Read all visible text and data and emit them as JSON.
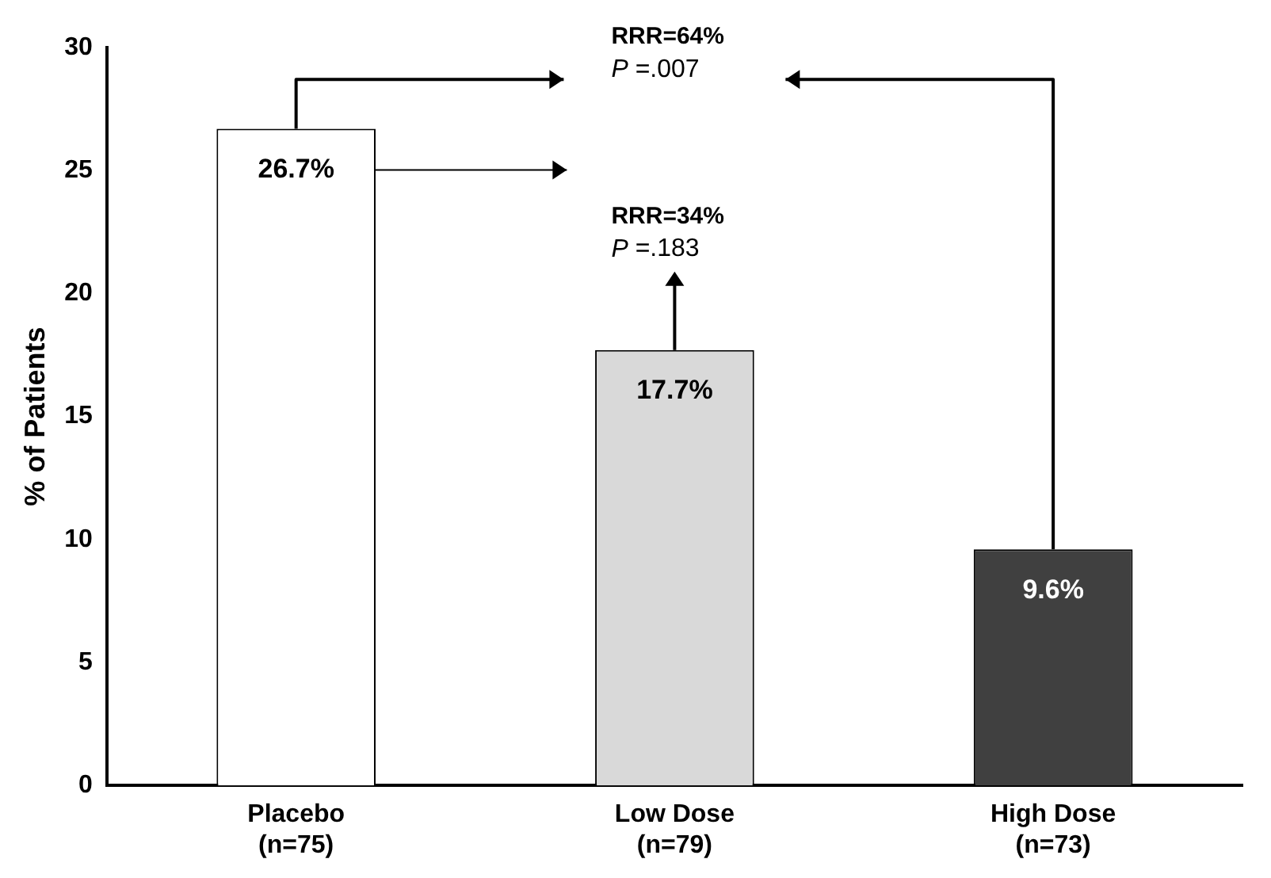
{
  "chart_data": {
    "type": "bar",
    "categories": [
      "Placebo\n(n=75)",
      "Low Dose\n(n=79)",
      "High Dose\n(n=73)"
    ],
    "values": [
      26.7,
      17.7,
      9.6
    ],
    "colors": [
      "#ffffff",
      "#d9d9d9",
      "#404040"
    ],
    "ylabel": "% of Patients",
    "ylim": [
      0,
      30
    ],
    "yticks": [
      0,
      5,
      10,
      15,
      20,
      25,
      30
    ],
    "value_labels": [
      "26.7%",
      "17.7%",
      "9.6%"
    ],
    "grid": false,
    "legend": false,
    "annotations": [
      "RRR=34%\nP =.183",
      "RRR=64%\nP =.007"
    ]
  }
}
